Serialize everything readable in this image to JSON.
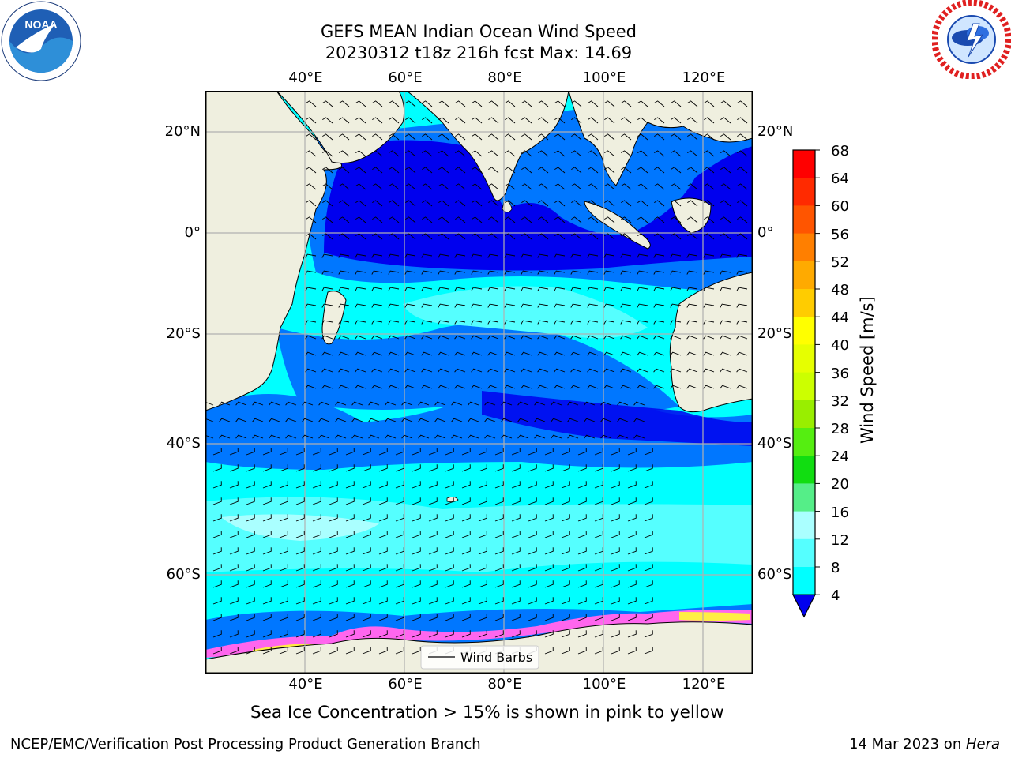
{
  "header": {
    "title_line1": "GEFS MEAN Indian Ocean Wind Speed",
    "title_line2": "20230312 t18z 216h fcst   Max: 14.69"
  },
  "logos": {
    "noaa_text": "NOAA",
    "noaa_ring_text": "NATIONAL OCEANIC AND ATMOSPHERIC ADMINISTRATION · U.S. DEPARTMENT OF COMMERCE",
    "nws_ring_text": "NATIONAL WEATHER SERVICE"
  },
  "map": {
    "lon_ticks_top": [
      "40°E",
      "60°E",
      "80°E",
      "100°E",
      "120°E"
    ],
    "lon_ticks_bottom": [
      "40°E",
      "60°E",
      "80°E",
      "100°E",
      "120°E"
    ],
    "lat_ticks_left": [
      "20°N",
      "0°",
      "20°S",
      "40°S",
      "60°S"
    ],
    "lat_ticks_right": [
      "20°N",
      "0°",
      "20°S",
      "40°S",
      "60°S"
    ],
    "lon_values": [
      40,
      60,
      80,
      100,
      120
    ],
    "lat_values": [
      20,
      0,
      -20,
      -40,
      -60
    ],
    "extent_lon": [
      20,
      130
    ],
    "extent_lat": [
      -70,
      28
    ],
    "legend_label": "Wind Barbs",
    "colors": {
      "land": "#efefdf",
      "coast": "#000000",
      "grid": "#b0b0b0",
      "ice_pink": "#ff66ee",
      "ice_yellow": "#ffee44"
    }
  },
  "colorbar": {
    "title": "Wind Speed [m/s]",
    "labels": [
      "68",
      "64",
      "60",
      "56",
      "52",
      "48",
      "44",
      "40",
      "36",
      "32",
      "28",
      "24",
      "20",
      "16",
      "12",
      "8",
      "4"
    ],
    "colors": [
      "#ff0000",
      "#ff2a00",
      "#ff5500",
      "#ff7f00",
      "#ffaa00",
      "#ffcc00",
      "#ffff00",
      "#e6ff00",
      "#ccff00",
      "#99ee00",
      "#55ee11",
      "#11dd11",
      "#55ee88",
      "#aaffff",
      "#55ffff",
      "#00ffff",
      "#00ccff",
      "#0066ff"
    ],
    "extend_color": "#0000ee"
  },
  "caption": "Sea Ice Concentration > 15% is shown in pink to yellow",
  "footer": {
    "left": "NCEP/EMC/Verification Post Processing Product Generation Branch",
    "right_prefix": "14 Mar 2023 on ",
    "right_host": "Hera"
  }
}
